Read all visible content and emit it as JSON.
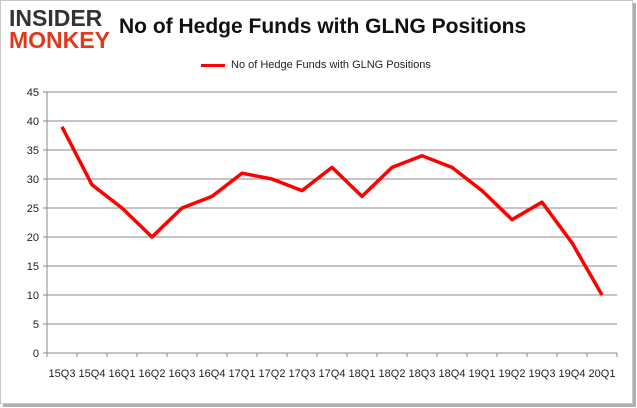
{
  "logo": {
    "line1": "INSIDER",
    "line2": "MONKEY"
  },
  "chart_data": {
    "type": "line",
    "title": "No of Hedge Funds with GLNG Positions",
    "categories": [
      "15Q3",
      "15Q4",
      "16Q1",
      "16Q2",
      "16Q3",
      "16Q4",
      "17Q1",
      "17Q2",
      "17Q3",
      "17Q4",
      "18Q1",
      "18Q2",
      "18Q3",
      "18Q4",
      "19Q1",
      "19Q2",
      "19Q3",
      "19Q4",
      "20Q1"
    ],
    "series": [
      {
        "name": "No of Hedge Funds with GLNG Positions",
        "values": [
          39,
          29,
          25,
          20,
          25,
          27,
          31,
          30,
          28,
          32,
          27,
          32,
          34,
          32,
          28,
          23,
          26,
          19,
          10
        ],
        "color": "#ff0000"
      }
    ],
    "ylim": [
      0,
      45
    ],
    "yticks": [
      0,
      5,
      10,
      15,
      20,
      25,
      30,
      35,
      40,
      45
    ],
    "grid": true,
    "legend": "top-center"
  }
}
